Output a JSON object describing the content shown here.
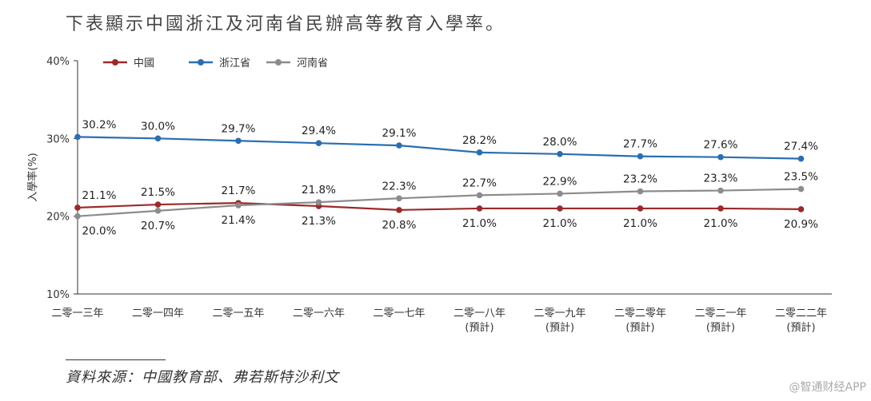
{
  "header": {
    "title": "下表顯示中國浙江及河南省民辦高等教育入學率。"
  },
  "chart_data": {
    "type": "line",
    "ylabel": "入學率(%)",
    "xlabel": "",
    "ylim": [
      10,
      40
    ],
    "yticks": [
      "10%",
      "20%",
      "30%",
      "40%"
    ],
    "grid": false,
    "legend_position": "top-left",
    "categories": [
      [
        "二零一三年"
      ],
      [
        "二零一四年"
      ],
      [
        "二零一五年"
      ],
      [
        "二零一六年"
      ],
      [
        "二零一七年"
      ],
      [
        "二零一八年",
        "(預計)"
      ],
      [
        "二零一九年",
        "(預計)"
      ],
      [
        "二零二零年",
        "(預計)"
      ],
      [
        "二零二一年",
        "(預計)"
      ],
      [
        "二零二二年",
        "(預計)"
      ]
    ],
    "series": [
      {
        "name": "中國",
        "color": "#9b2a2a",
        "values": [
          21.1,
          21.5,
          21.7,
          21.3,
          20.8,
          21.0,
          21.0,
          21.0,
          21.0,
          20.9
        ],
        "labels": [
          "21.1%",
          "21.5%",
          "21.7%",
          "21.3%",
          "20.8%",
          "21.0%",
          "21.0%",
          "21.0%",
          "21.0%",
          "20.9%"
        ],
        "label_side": [
          "above",
          "above",
          "above",
          "below",
          "below",
          "below",
          "below",
          "below",
          "below",
          "below"
        ]
      },
      {
        "name": "浙江省",
        "color": "#2a6fb0",
        "values": [
          30.2,
          30.0,
          29.7,
          29.4,
          29.1,
          28.2,
          28.0,
          27.7,
          27.6,
          27.4
        ],
        "labels": [
          "30.2%",
          "30.0%",
          "29.7%",
          "29.4%",
          "29.1%",
          "28.2%",
          "28.0%",
          "27.7%",
          "27.6%",
          "27.4%"
        ],
        "label_side": [
          "above",
          "above",
          "above",
          "above",
          "above",
          "above",
          "above",
          "above",
          "above",
          "above"
        ]
      },
      {
        "name": "河南省",
        "color": "#8c8c8c",
        "values": [
          20.0,
          20.7,
          21.4,
          21.8,
          22.3,
          22.7,
          22.9,
          23.2,
          23.3,
          23.5
        ],
        "labels": [
          "20.0%",
          "20.7%",
          "21.4%",
          "21.8%",
          "22.3%",
          "22.7%",
          "22.9%",
          "23.2%",
          "23.3%",
          "23.5%"
        ],
        "label_side": [
          "below",
          "below",
          "below",
          "above",
          "above",
          "above",
          "above",
          "above",
          "above",
          "above"
        ]
      }
    ]
  },
  "footer": {
    "source": "資料來源：中國教育部、弗若斯特沙利文"
  },
  "watermark": {
    "text": "@智通财经APP"
  }
}
